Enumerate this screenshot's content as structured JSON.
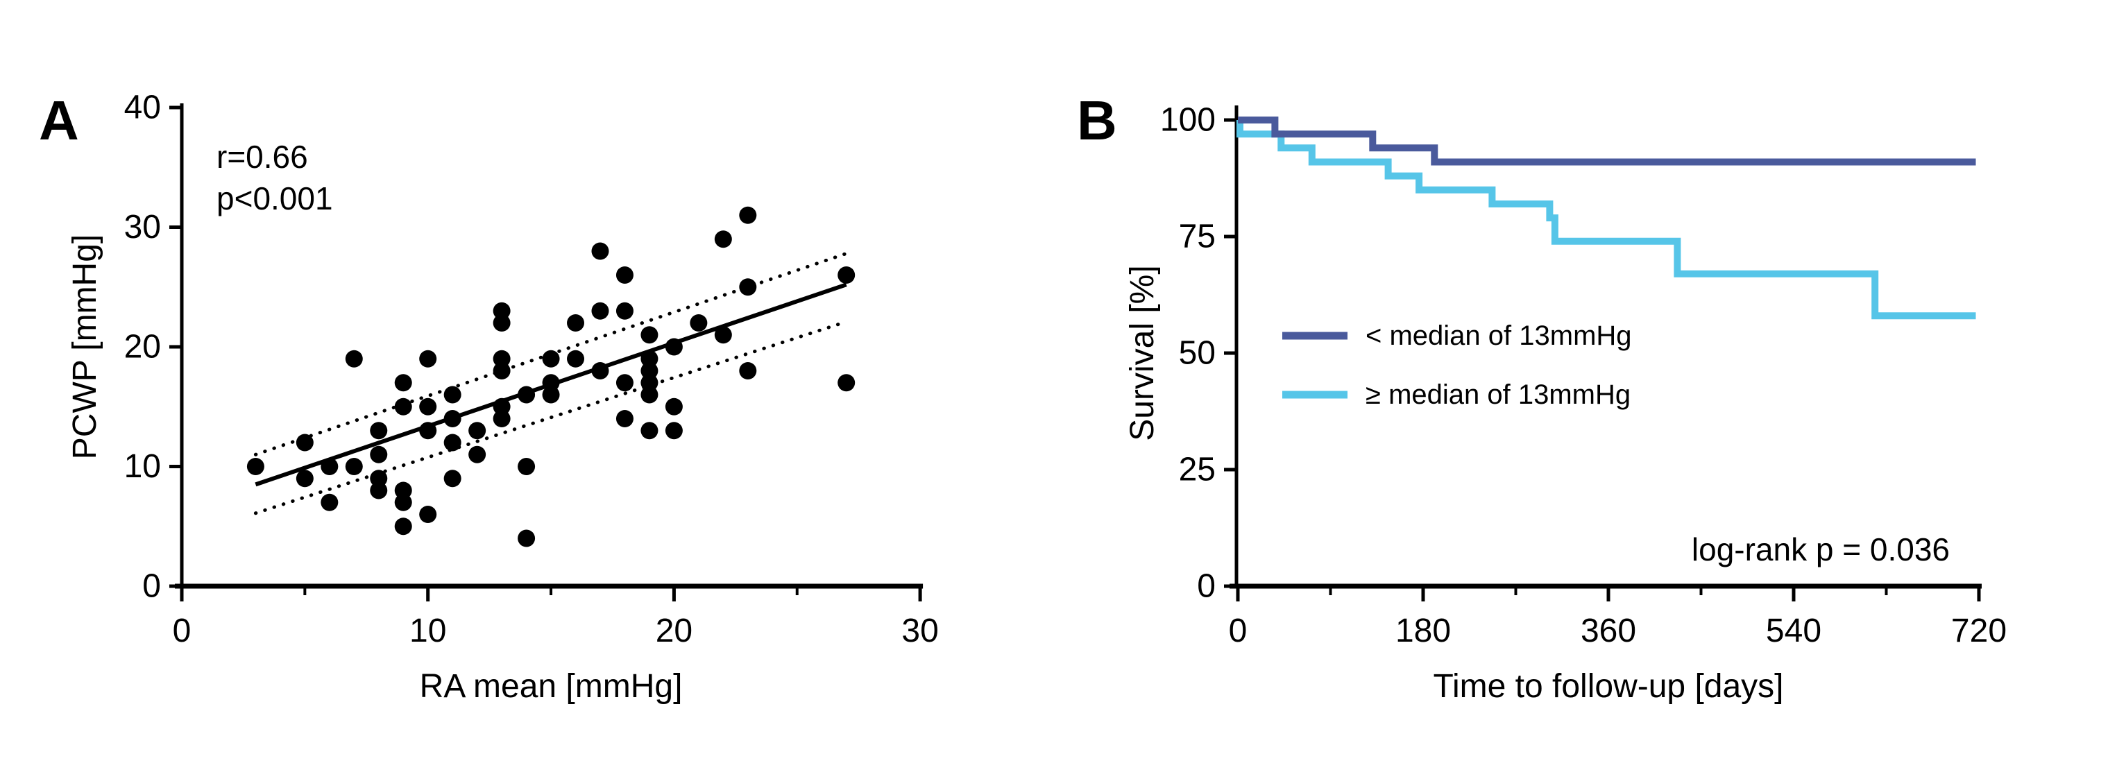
{
  "figure": {
    "background": "#ffffff",
    "panel_a": {
      "label": "A",
      "stats_line1": "r=0.66",
      "stats_line2": "p<0.001",
      "x_axis_title": "RA mean [mmHg]",
      "y_axis_title": "PCWP [mmHg]",
      "x_tick_labels": [
        "0",
        "10",
        "20",
        "30"
      ],
      "y_tick_labels": [
        "0",
        "10",
        "20",
        "30",
        "40"
      ]
    },
    "panel_b": {
      "label": "B",
      "x_axis_title": "Time to follow-up [days]",
      "y_axis_title": "Survival [%]",
      "x_tick_labels": [
        "0",
        "180",
        "360",
        "540",
        "720"
      ],
      "y_tick_labels": [
        "0",
        "25",
        "50",
        "75",
        "100"
      ],
      "legend": [
        {
          "label": "< median of 13mmHg",
          "color": "#4A5A9C"
        },
        {
          "label": "≥ median of 13mmHg",
          "color": "#56C5E8"
        }
      ],
      "annotation": "log-rank p = 0.036"
    }
  },
  "chart_data": [
    {
      "type": "scatter",
      "title": "",
      "xlabel": "RA mean [mmHg]",
      "ylabel": "PCWP [mmHg]",
      "xlim": [
        0,
        30
      ],
      "ylim": [
        0,
        40
      ],
      "x_major_ticks": [
        0,
        10,
        20,
        30
      ],
      "x_minor_ticks": [
        5,
        15,
        25
      ],
      "y_major_ticks": [
        0,
        10,
        20,
        30,
        40
      ],
      "grid": false,
      "marker_color": "#000000",
      "stats": {
        "r": "r=0.66",
        "p": "p<0.001"
      },
      "points": [
        [
          3,
          10
        ],
        [
          5,
          12
        ],
        [
          5,
          9
        ],
        [
          6,
          10
        ],
        [
          6,
          7
        ],
        [
          7,
          19
        ],
        [
          7,
          10
        ],
        [
          8,
          13
        ],
        [
          8,
          11
        ],
        [
          8,
          9
        ],
        [
          8,
          8
        ],
        [
          9,
          17
        ],
        [
          9,
          15
        ],
        [
          9,
          8
        ],
        [
          9,
          7
        ],
        [
          9,
          5
        ],
        [
          10,
          19
        ],
        [
          10,
          15
        ],
        [
          10,
          13
        ],
        [
          10,
          6
        ],
        [
          11,
          16
        ],
        [
          11,
          14
        ],
        [
          11,
          12
        ],
        [
          11,
          9
        ],
        [
          12,
          13
        ],
        [
          12,
          11
        ],
        [
          13,
          23
        ],
        [
          13,
          22
        ],
        [
          13,
          19
        ],
        [
          13,
          18
        ],
        [
          13,
          15
        ],
        [
          13,
          14
        ],
        [
          14,
          16
        ],
        [
          14,
          10
        ],
        [
          14,
          4
        ],
        [
          15,
          19
        ],
        [
          15,
          17
        ],
        [
          15,
          16
        ],
        [
          16,
          22
        ],
        [
          16,
          19
        ],
        [
          17,
          28
        ],
        [
          17,
          23
        ],
        [
          17,
          18
        ],
        [
          18,
          26
        ],
        [
          18,
          23
        ],
        [
          18,
          17
        ],
        [
          18,
          14
        ],
        [
          19,
          21
        ],
        [
          19,
          19
        ],
        [
          19,
          18
        ],
        [
          19,
          17
        ],
        [
          19,
          16
        ],
        [
          19,
          13
        ],
        [
          20,
          20
        ],
        [
          20,
          15
        ],
        [
          20,
          13
        ],
        [
          21,
          22
        ],
        [
          22,
          29
        ],
        [
          22,
          21
        ],
        [
          23,
          31
        ],
        [
          23,
          25
        ],
        [
          23,
          18
        ],
        [
          27,
          26
        ],
        [
          27,
          17
        ]
      ],
      "regression_line": {
        "x1": 3,
        "y1": 8.5,
        "x2": 27,
        "y2": 25.2
      },
      "ci_upper": {
        "x1": 3,
        "y1": 11.0,
        "x2": 27,
        "y2": 27.8
      },
      "ci_lower": {
        "x1": 3,
        "y1": 6.1,
        "x2": 27,
        "y2": 22.1
      }
    },
    {
      "type": "line",
      "subtype": "kaplan-meier-step",
      "title": "",
      "xlabel": "Time to follow-up [days]",
      "ylabel": "Survival [%]",
      "xlim": [
        0,
        720
      ],
      "ylim": [
        0,
        100
      ],
      "x_major_ticks": [
        0,
        180,
        360,
        540,
        720
      ],
      "x_minor_ticks": [
        90,
        270,
        450,
        630
      ],
      "y_major_ticks": [
        0,
        25,
        50,
        75,
        100
      ],
      "grid": false,
      "legend_position": "center-left",
      "annotation": "log-rank p = 0.036",
      "series": [
        {
          "name": "< median of 13mmHg",
          "color": "#4A5A9C",
          "steps": [
            [
              0,
              100
            ],
            [
              36,
              100
            ],
            [
              36,
              97
            ],
            [
              131,
              97
            ],
            [
              131,
              94
            ],
            [
              191,
              94
            ],
            [
              191,
              91
            ],
            [
              717,
              91
            ]
          ]
        },
        {
          "name": "≥ median of 13mmHg",
          "color": "#56C5E8",
          "steps": [
            [
              0,
              100
            ],
            [
              2,
              100
            ],
            [
              2,
              97
            ],
            [
              42,
              97
            ],
            [
              42,
              94
            ],
            [
              72,
              94
            ],
            [
              72,
              91
            ],
            [
              146,
              91
            ],
            [
              146,
              88
            ],
            [
              176,
              88
            ],
            [
              176,
              85
            ],
            [
              247,
              85
            ],
            [
              247,
              82
            ],
            [
              303,
              82
            ],
            [
              303,
              79
            ],
            [
              308,
              79
            ],
            [
              308,
              74
            ],
            [
              427,
              74
            ],
            [
              427,
              67
            ],
            [
              619,
              67
            ],
            [
              619,
              58
            ],
            [
              717,
              58
            ]
          ]
        }
      ]
    }
  ]
}
